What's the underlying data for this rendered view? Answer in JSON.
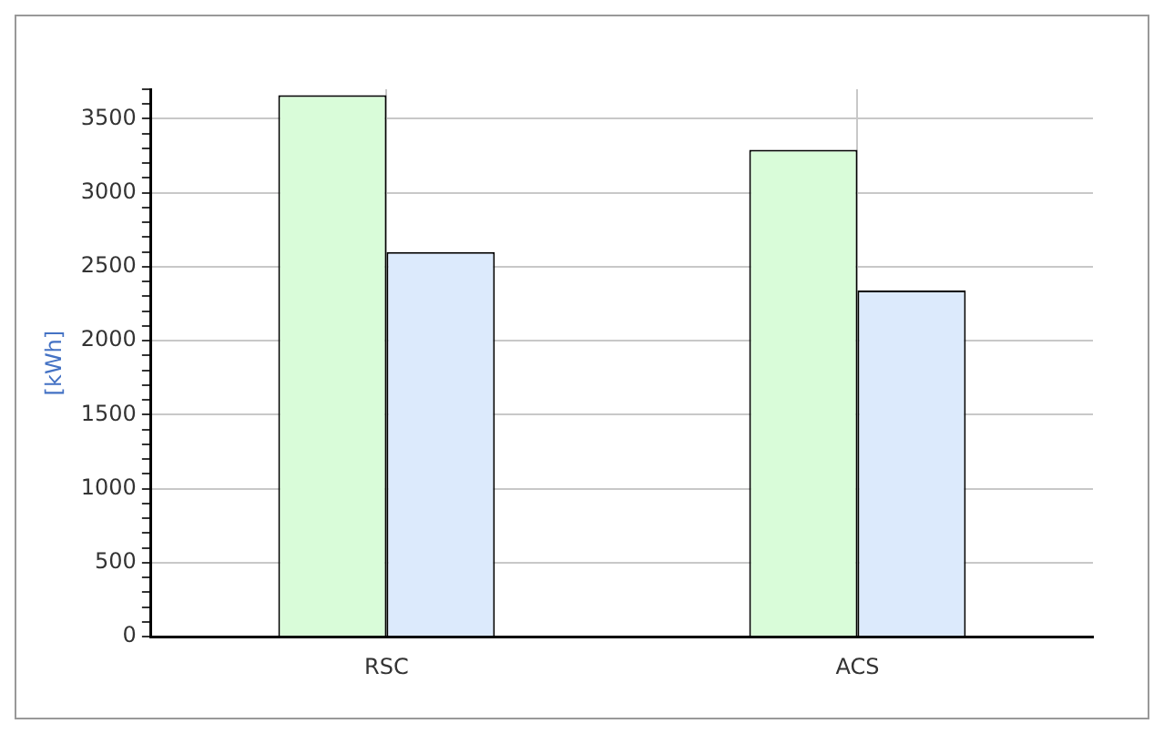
{
  "chart_data": {
    "type": "bar",
    "ylabel": "[kWh]",
    "categories": [
      "RSC",
      "ACS"
    ],
    "series": [
      {
        "color": "#d9fcd9",
        "values": [
          3660,
          3290
        ]
      },
      {
        "color": "#dceafc",
        "values": [
          2600,
          2340
        ]
      }
    ],
    "ylim": [
      0,
      3700
    ],
    "yticks": [
      0,
      {
        "value": 100,
        "label": null
      },
      {
        "value": 200,
        "label": null
      },
      {
        "value": 300,
        "label": null
      },
      {
        "value": 400,
        "label": null
      },
      500,
      {
        "value": 600,
        "label": null
      },
      {
        "value": 700,
        "label": null
      },
      {
        "value": 800,
        "label": null
      },
      {
        "value": 900,
        "label": null
      },
      1000,
      {
        "value": 1100,
        "label": null
      },
      {
        "value": 1200,
        "label": null
      },
      {
        "value": 1300,
        "label": null
      },
      {
        "value": 1400,
        "label": null
      },
      1500,
      {
        "value": 1600,
        "label": null
      },
      {
        "value": 1700,
        "label": null
      },
      {
        "value": 1800,
        "label": null
      },
      {
        "value": 1900,
        "label": null
      },
      2000,
      {
        "value": 2100,
        "label": null
      },
      {
        "value": 2200,
        "label": null
      },
      {
        "value": 2300,
        "label": null
      },
      {
        "value": 2400,
        "label": null
      },
      2500,
      {
        "value": 2600,
        "label": null
      },
      {
        "value": 2700,
        "label": null
      },
      {
        "value": 2800,
        "label": null
      },
      {
        "value": 2900,
        "label": null
      },
      3000,
      {
        "value": 3100,
        "label": null
      },
      {
        "value": 3200,
        "label": null
      },
      {
        "value": 3300,
        "label": null
      },
      {
        "value": 3400,
        "label": null
      },
      3500,
      {
        "value": 3600,
        "label": null
      },
      {
        "value": 3700,
        "label": null
      }
    ],
    "grid": true,
    "legend": false
  }
}
